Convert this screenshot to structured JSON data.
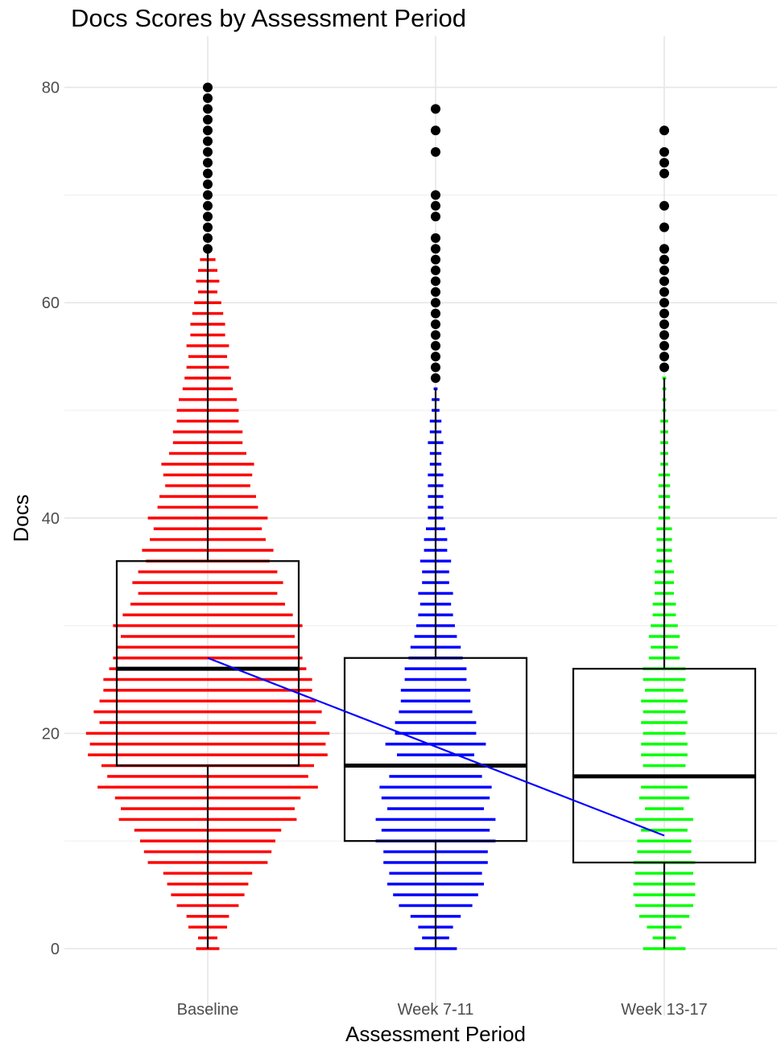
{
  "chart_data": {
    "type": "box",
    "title": "Docs Scores by Assessment Period",
    "xlabel": "Assessment Period",
    "ylabel": "Docs",
    "categories": [
      "Baseline",
      "Week 7-11",
      "Week 13-17"
    ],
    "ylim": [
      -4,
      84
    ],
    "yticks": [
      0,
      20,
      40,
      60,
      80
    ],
    "grid": true,
    "legend": "none",
    "boxes": [
      {
        "category": "Baseline",
        "q1": 17,
        "median": 26,
        "q3": 36,
        "whisker_low": 0,
        "whisker_high": 65,
        "outliers": [
          65,
          66,
          67,
          68,
          69,
          70,
          71,
          72,
          73,
          74,
          75,
          76,
          77,
          78,
          79,
          80
        ]
      },
      {
        "category": "Week 7-11",
        "q1": 10,
        "median": 17,
        "q3": 27,
        "whisker_low": 0,
        "whisker_high": 52,
        "outliers": [
          53,
          54,
          55,
          56,
          57,
          58,
          59,
          60,
          61,
          62,
          63,
          64,
          65,
          66,
          68,
          69,
          70,
          74,
          76,
          78
        ]
      },
      {
        "category": "Week 13-17",
        "q1": 8,
        "median": 16,
        "q3": 26,
        "whisker_low": 0,
        "whisker_high": 53,
        "outliers": [
          54,
          55,
          56,
          57,
          58,
          59,
          60,
          61,
          62,
          63,
          64,
          65,
          67,
          69,
          72,
          73,
          74,
          76
        ]
      }
    ],
    "series": [
      {
        "category": "Baseline",
        "color": "#ff0000",
        "dots": [
          [
            0,
            6
          ],
          [
            1,
            5
          ],
          [
            2,
            10
          ],
          [
            3,
            11
          ],
          [
            4,
            16
          ],
          [
            5,
            19
          ],
          [
            6,
            21
          ],
          [
            7,
            23
          ],
          [
            8,
            31
          ],
          [
            9,
            33
          ],
          [
            10,
            35
          ],
          [
            11,
            38
          ],
          [
            12,
            46
          ],
          [
            13,
            45
          ],
          [
            14,
            48
          ],
          [
            15,
            57
          ],
          [
            16,
            52
          ],
          [
            17,
            55
          ],
          [
            18,
            62
          ],
          [
            19,
            61
          ],
          [
            20,
            63
          ],
          [
            21,
            56
          ],
          [
            22,
            59
          ],
          [
            23,
            56
          ],
          [
            24,
            54
          ],
          [
            25,
            54
          ],
          [
            26,
            51
          ],
          [
            27,
            49
          ],
          [
            28,
            47
          ],
          [
            29,
            45
          ],
          [
            30,
            49
          ],
          [
            31,
            44
          ],
          [
            32,
            40
          ],
          [
            33,
            36
          ],
          [
            34,
            39
          ],
          [
            35,
            36
          ],
          [
            36,
            32
          ],
          [
            37,
            34
          ],
          [
            38,
            30
          ],
          [
            39,
            28
          ],
          [
            40,
            31
          ],
          [
            41,
            26
          ],
          [
            42,
            25
          ],
          [
            43,
            22
          ],
          [
            44,
            23
          ],
          [
            45,
            24
          ],
          [
            46,
            20
          ],
          [
            47,
            18
          ],
          [
            48,
            18
          ],
          [
            49,
            16
          ],
          [
            50,
            16
          ],
          [
            51,
            15
          ],
          [
            52,
            13
          ],
          [
            53,
            12
          ],
          [
            54,
            11
          ],
          [
            55,
            10
          ],
          [
            56,
            11
          ],
          [
            57,
            9
          ],
          [
            58,
            9
          ],
          [
            59,
            8
          ],
          [
            60,
            7
          ],
          [
            61,
            5
          ],
          [
            62,
            6
          ],
          [
            63,
            5
          ],
          [
            64,
            4
          ]
        ]
      },
      {
        "category": "Week 7-11",
        "color": "#0000ff",
        "dots": [
          [
            0,
            11
          ],
          [
            1,
            7
          ],
          [
            2,
            9
          ],
          [
            3,
            13
          ],
          [
            4,
            19
          ],
          [
            5,
            22
          ],
          [
            6,
            25
          ],
          [
            7,
            24
          ],
          [
            8,
            27
          ],
          [
            9,
            27
          ],
          [
            10,
            31
          ],
          [
            11,
            28
          ],
          [
            12,
            31
          ],
          [
            13,
            25
          ],
          [
            14,
            28
          ],
          [
            15,
            29
          ],
          [
            16,
            24
          ],
          [
            17,
            23
          ],
          [
            18,
            20
          ],
          [
            19,
            26
          ],
          [
            20,
            21
          ],
          [
            21,
            21
          ],
          [
            22,
            19
          ],
          [
            23,
            18
          ],
          [
            24,
            18
          ],
          [
            25,
            16
          ],
          [
            26,
            16
          ],
          [
            27,
            14
          ],
          [
            28,
            13
          ],
          [
            29,
            11
          ],
          [
            30,
            10
          ],
          [
            31,
            9
          ],
          [
            32,
            8
          ],
          [
            33,
            9
          ],
          [
            34,
            7
          ],
          [
            35,
            7
          ],
          [
            36,
            8
          ],
          [
            37,
            6
          ],
          [
            38,
            6
          ],
          [
            39,
            5
          ],
          [
            40,
            4
          ],
          [
            41,
            4
          ],
          [
            42,
            4
          ],
          [
            43,
            4
          ],
          [
            44,
            4
          ],
          [
            45,
            3
          ],
          [
            46,
            3
          ],
          [
            47,
            4
          ],
          [
            48,
            3
          ],
          [
            49,
            3
          ],
          [
            50,
            2
          ],
          [
            51,
            2
          ],
          [
            52,
            1
          ]
        ]
      },
      {
        "category": "Week 13-17",
        "color": "#00ff00",
        "dots": [
          [
            0,
            11
          ],
          [
            1,
            6
          ],
          [
            2,
            9
          ],
          [
            3,
            13
          ],
          [
            4,
            15
          ],
          [
            5,
            16
          ],
          [
            6,
            16
          ],
          [
            7,
            15
          ],
          [
            8,
            16
          ],
          [
            9,
            14
          ],
          [
            10,
            14
          ],
          [
            11,
            12
          ],
          [
            12,
            15
          ],
          [
            13,
            10
          ],
          [
            14,
            13
          ],
          [
            15,
            12
          ],
          [
            16,
            10
          ],
          [
            17,
            11
          ],
          [
            18,
            12
          ],
          [
            19,
            12
          ],
          [
            20,
            11
          ],
          [
            21,
            12
          ],
          [
            22,
            11
          ],
          [
            23,
            12
          ],
          [
            24,
            10
          ],
          [
            25,
            11
          ],
          [
            26,
            11
          ],
          [
            27,
            8
          ],
          [
            28,
            7
          ],
          [
            29,
            8
          ],
          [
            30,
            7
          ],
          [
            31,
            6
          ],
          [
            32,
            6
          ],
          [
            33,
            5
          ],
          [
            34,
            5
          ],
          [
            35,
            5
          ],
          [
            36,
            4
          ],
          [
            37,
            4
          ],
          [
            38,
            4
          ],
          [
            39,
            4
          ],
          [
            40,
            3
          ],
          [
            41,
            3
          ],
          [
            42,
            3
          ],
          [
            43,
            3
          ],
          [
            44,
            3
          ],
          [
            45,
            2
          ],
          [
            46,
            2
          ],
          [
            47,
            2
          ],
          [
            48,
            2
          ],
          [
            49,
            2
          ],
          [
            50,
            1
          ],
          [
            51,
            1
          ],
          [
            52,
            1
          ],
          [
            53,
            1
          ]
        ]
      }
    ],
    "trend_line": {
      "color": "#0000ff",
      "points": [
        [
          "Baseline",
          27
        ],
        [
          "Week 13-17",
          10.5
        ]
      ]
    }
  }
}
